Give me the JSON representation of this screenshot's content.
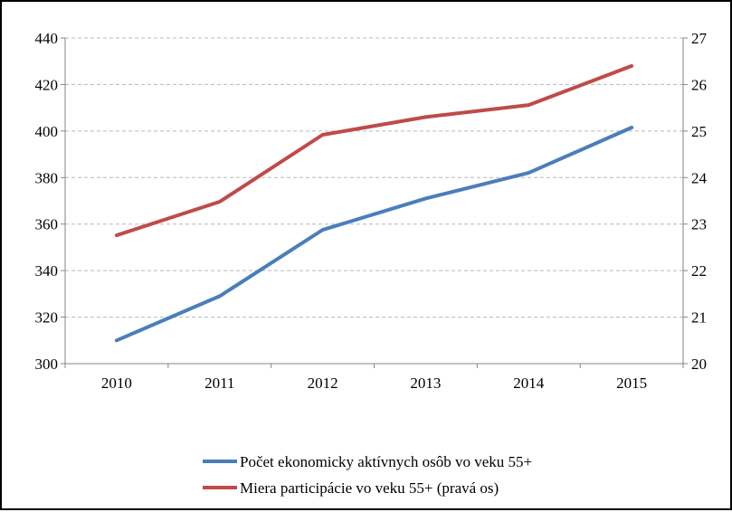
{
  "chart_data": {
    "type": "line",
    "title": "",
    "xlabel": "",
    "ylabel": "",
    "categories": [
      "2010",
      "2011",
      "2012",
      "2013",
      "2014",
      "2015"
    ],
    "y_left": {
      "ylim": [
        300,
        440
      ],
      "ticks": [
        300,
        320,
        340,
        360,
        380,
        400,
        420,
        440
      ]
    },
    "y_right": {
      "ylim": [
        20,
        27
      ],
      "ticks": [
        20,
        21,
        22,
        23,
        24,
        25,
        26,
        27
      ]
    },
    "grid": true,
    "legend_position": "bottom",
    "series": [
      {
        "name": "Počet ekonomicky aktívnych osôb vo veku 55+",
        "axis": "left",
        "color": "#4a7ebb",
        "values": [
          310,
          329,
          357.5,
          371,
          382,
          401.5
        ]
      },
      {
        "name": "Miera participácie vo veku 55+ (pravá os)",
        "axis": "right",
        "color": "#be4b48",
        "values": [
          22.76,
          23.48,
          24.92,
          25.3,
          25.56,
          26.4
        ]
      }
    ]
  }
}
